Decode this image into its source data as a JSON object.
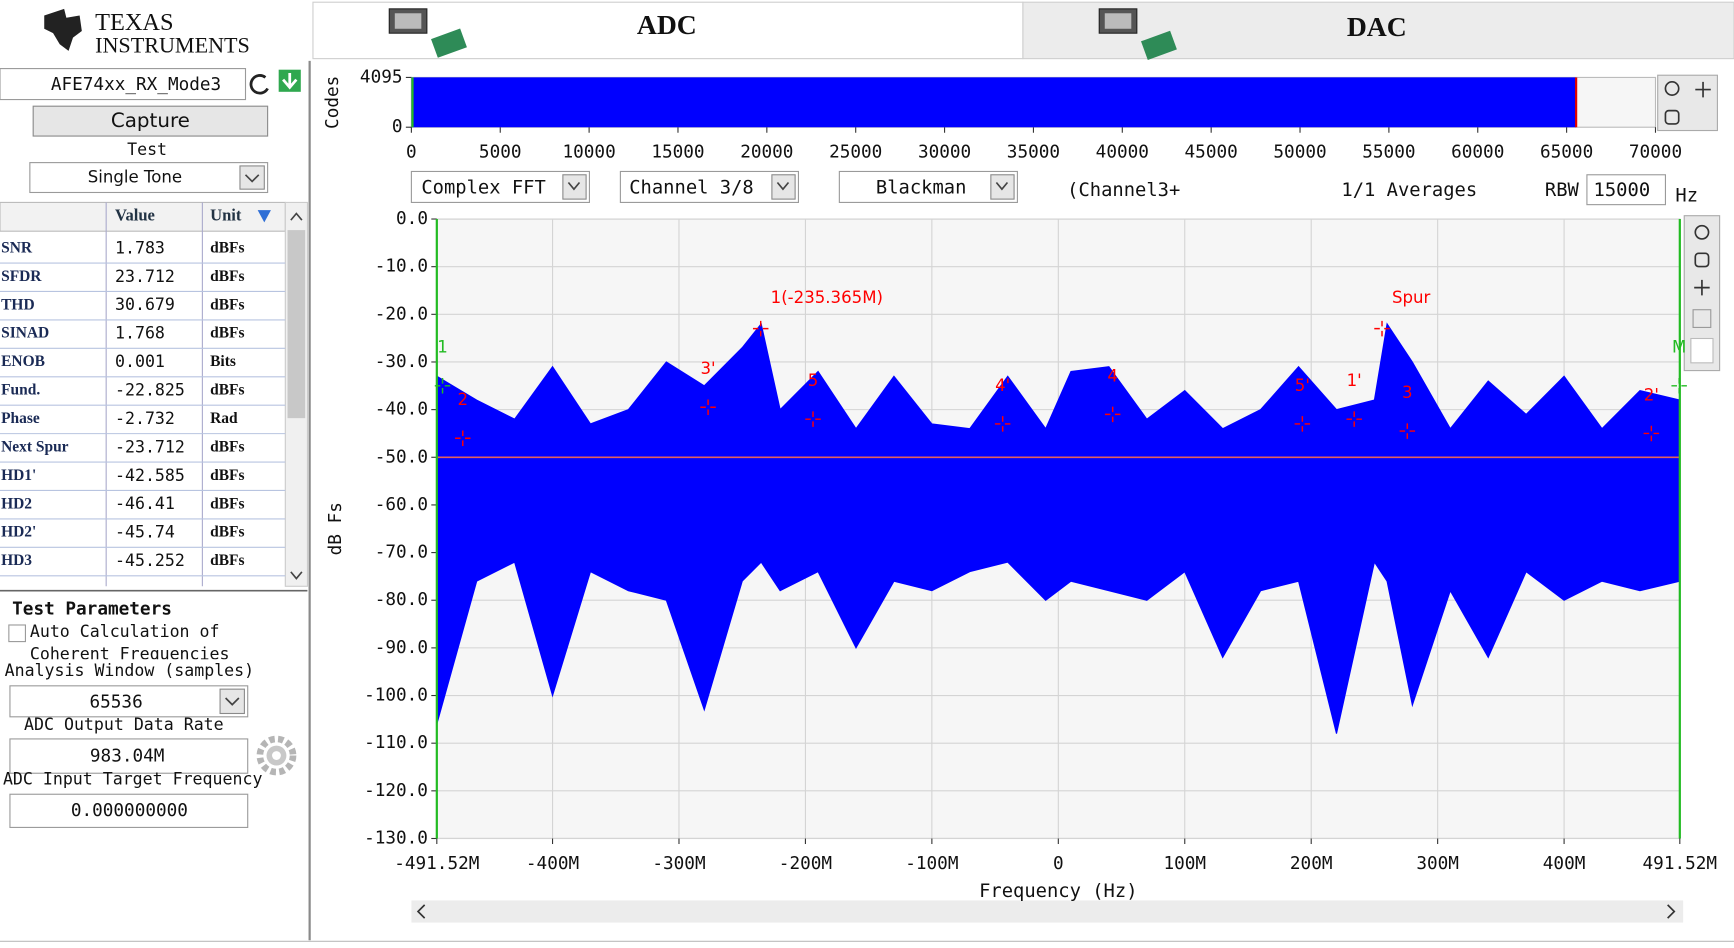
{
  "header": {
    "logo_line1": "TEXAS",
    "logo_line2": "INSTRUMENTS"
  },
  "tabs": [
    "ADC",
    "DAC"
  ],
  "left_panel": {
    "config": "AFE74xx_RX_Mode3",
    "capture": "Capture",
    "test_label": "Test",
    "test": "Single Tone",
    "table": {
      "columns": [
        "Value",
        "Unit"
      ],
      "rows": [
        [
          "SNR",
          "1.783",
          "dBFs"
        ],
        [
          "SFDR",
          "23.712",
          "dBFs"
        ],
        [
          "THD",
          "30.679",
          "dBFs"
        ],
        [
          "SINAD",
          "1.768",
          "dBFs"
        ],
        [
          "ENOB",
          "0.001",
          "Bits"
        ],
        [
          "Fund.",
          "-22.825",
          "dBFs"
        ],
        [
          "Phase",
          "-2.732",
          "Rad"
        ],
        [
          "Next Spur",
          "-23.712",
          "dBFs"
        ],
        [
          "HD1'",
          "-42.585",
          "dBFs"
        ],
        [
          "HD2",
          "-46.41",
          "dBFs"
        ],
        [
          "HD2'",
          "-45.74",
          "dBFs"
        ],
        [
          "HD3",
          "-45.252",
          "dBFs"
        ]
      ]
    },
    "test_parameters": "Test Parameters",
    "auto_calc": "Auto Calculation of",
    "auto_calc_2": "Coherent Frequencies",
    "analysis_window_label": "Analysis Window (samples)",
    "analysis_window": "65536",
    "data_rate_label": "ADC Output Data Rate",
    "data_rate": "983.04M",
    "target_freq_label": "ADC Input Target Frequency",
    "target_freq": "0.000000000"
  },
  "controls": {
    "fft_mode": "Complex FFT",
    "channel": "Channel 3/8",
    "window": "Blackman",
    "channel_note": "(Channel3+",
    "averages": "1/1 Averages",
    "rbw_label": "RBW",
    "rbw": "15000",
    "rbw_unit": "Hz"
  },
  "chart_data": [
    {
      "type": "area",
      "y_label": "Codes",
      "x": [
        0,
        65535
      ],
      "values": [
        4095,
        4095
      ],
      "color": "#0000ff",
      "xlim": [
        0,
        70000
      ],
      "xticks": [
        0,
        5000,
        10000,
        15000,
        20000,
        25000,
        30000,
        35000,
        40000,
        45000,
        50000,
        55000,
        60000,
        65000,
        70000
      ],
      "ylim": [
        0,
        4095
      ],
      "yticks": [
        0,
        4095
      ],
      "grid": false
    },
    {
      "type": "band",
      "y_label": "dB Fs",
      "x_label": "Frequency (Hz)",
      "color": "#0000ff",
      "x": [
        -491520000,
        -460000000,
        -430000000,
        -400000000,
        -370000000,
        -340000000,
        -310000000,
        -280000000,
        -250000000,
        -235000000,
        -220000000,
        -190000000,
        -160000000,
        -130000000,
        -100000000,
        -70000000,
        -40000000,
        -10000000,
        10000000,
        40000000,
        70000000,
        100000000,
        130000000,
        160000000,
        190000000,
        220000000,
        250000000,
        260000000,
        280000000,
        310000000,
        340000000,
        370000000,
        400000000,
        430000000,
        460000000,
        491520000
      ],
      "upper": [
        -33,
        -38,
        -42,
        -31,
        -43,
        -40,
        -30,
        -35,
        -27,
        -22,
        -40,
        -32,
        -44,
        -33,
        -43,
        -44,
        -33,
        -44,
        -32,
        -31,
        -42,
        -36,
        -44,
        -40,
        -31,
        -40,
        -38,
        -22,
        -30,
        -44,
        -34,
        -41,
        -33,
        -44,
        -36,
        -38
      ],
      "lower": [
        -106,
        -76,
        -72,
        -100,
        -74,
        -78,
        -80,
        -103,
        -76,
        -72,
        -78,
        -74,
        -90,
        -76,
        -78,
        -74,
        -72,
        -80,
        -76,
        -78,
        -80,
        -74,
        -92,
        -78,
        -76,
        -108,
        -72,
        -76,
        -102,
        -78,
        -92,
        -74,
        -80,
        -76,
        -78,
        -76
      ],
      "reference_line": -50,
      "reference_color": "#e06060",
      "xlim": [
        -491520000,
        491520000
      ],
      "xticks": [
        {
          "value": -491520000,
          "label": "-491.52M"
        },
        {
          "value": -400000000,
          "label": "-400M"
        },
        {
          "value": -300000000,
          "label": "-300M"
        },
        {
          "value": -200000000,
          "label": "-200M"
        },
        {
          "value": -100000000,
          "label": "-100M"
        },
        0,
        {
          "value": 100000000,
          "label": "100M"
        },
        {
          "value": 200000000,
          "label": "200M"
        },
        {
          "value": 300000000,
          "label": "300M"
        },
        {
          "value": 400000000,
          "label": "400M"
        },
        {
          "value": 491520000,
          "label": "491.52M"
        }
      ],
      "ylim": [
        -130,
        0
      ],
      "yticks": [
        {
          "value": 0,
          "label": "0.0"
        },
        {
          "value": -10,
          "label": "-10.0"
        },
        {
          "value": -20,
          "label": "-20.0"
        },
        {
          "value": -30,
          "label": "-30.0"
        },
        {
          "value": -40,
          "label": "-40.0"
        },
        {
          "value": -50,
          "label": "-50.0"
        },
        {
          "value": -60,
          "label": "-60.0"
        },
        {
          "value": -70,
          "label": "-70.0"
        },
        {
          "value": -80,
          "label": "-80.0"
        },
        {
          "value": -90,
          "label": "-90.0"
        },
        {
          "value": -100,
          "label": "-100.0"
        },
        {
          "value": -110,
          "label": "-110.0"
        },
        {
          "value": -120,
          "label": "-120.0"
        },
        {
          "value": -130,
          "label": "-130.0"
        }
      ],
      "grid": true,
      "markers": [
        {
          "label": "1(-235.365M)",
          "x": -235365000,
          "y": -23,
          "color": "#ff0000"
        },
        {
          "label": "1",
          "x": -487000000,
          "y": -35,
          "color": "#22bb22"
        },
        {
          "label": "2",
          "x": -471000000,
          "y": -46,
          "color": "#ff0000"
        },
        {
          "label": "3'",
          "x": -277000000,
          "y": -39.5,
          "color": "#ff0000"
        },
        {
          "label": "5",
          "x": -194000000,
          "y": -42,
          "color": "#ff0000"
        },
        {
          "label": "4'",
          "x": -44000000,
          "y": -43,
          "color": "#ff0000"
        },
        {
          "label": "4",
          "x": 43000000,
          "y": -41,
          "color": "#ff0000"
        },
        {
          "label": "5'",
          "x": 193000000,
          "y": -43,
          "color": "#ff0000"
        },
        {
          "label": "1'",
          "x": 234000000,
          "y": -42,
          "color": "#ff0000"
        },
        {
          "label": "Spur",
          "x": 256000000,
          "y": -23,
          "color": "#ff0000"
        },
        {
          "label": "3",
          "x": 276000000,
          "y": -44.5,
          "color": "#ff0000"
        },
        {
          "label": "2'",
          "x": 469000000,
          "y": -45,
          "color": "#ff0000"
        },
        {
          "label": "M",
          "x": 491000000,
          "y": -35,
          "color": "#22bb22"
        }
      ]
    }
  ]
}
